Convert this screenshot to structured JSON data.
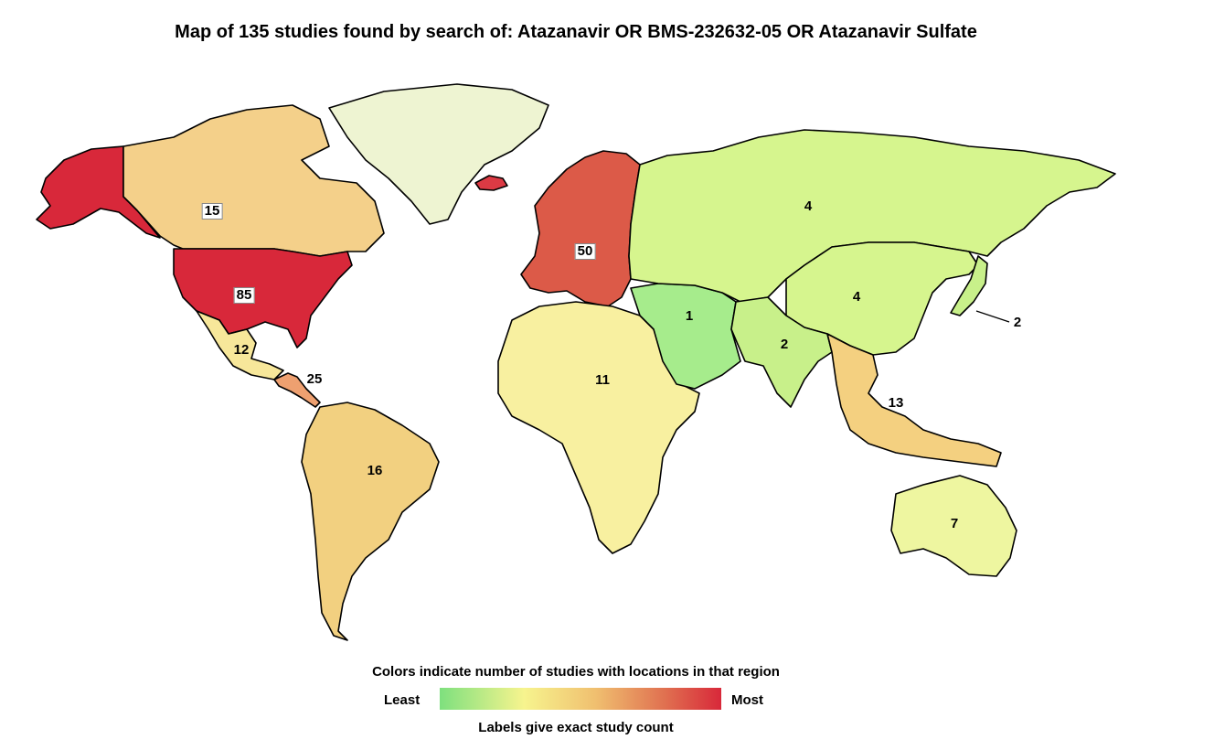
{
  "title": "Map of 135 studies found by search of:  Atazanavir OR BMS-232632-05 OR Atazanavir Sulfate",
  "legend": {
    "caption": "Colors indicate number of studies with locations in that region",
    "least": "Least",
    "most": "Most",
    "note": "Labels give exact study count"
  },
  "regions": [
    {
      "key": "alaska",
      "count": null,
      "color": "#d8283a"
    },
    {
      "key": "canada",
      "count": "15",
      "color": "#f4d08a"
    },
    {
      "key": "greenland",
      "count": null,
      "color": "#eef4d2"
    },
    {
      "key": "usa",
      "count": "85",
      "color": "#d8283a"
    },
    {
      "key": "mexico",
      "count": "12",
      "color": "#f7e79a"
    },
    {
      "key": "central-america",
      "count": "25",
      "color": "#eea070"
    },
    {
      "key": "south-america",
      "count": "16",
      "color": "#f2d080"
    },
    {
      "key": "europe",
      "count": "50",
      "color": "#dc5a48"
    },
    {
      "key": "africa",
      "count": "11",
      "color": "#f8f0a0"
    },
    {
      "key": "middle-east",
      "count": "1",
      "color": "#a6ec8c"
    },
    {
      "key": "russia",
      "count": "4",
      "color": "#d6f58e"
    },
    {
      "key": "east-asia",
      "count": "4",
      "color": "#d6f58e"
    },
    {
      "key": "south-asia",
      "count": "2",
      "color": "#c8f08a"
    },
    {
      "key": "japan",
      "count": "2",
      "color": "#c8f08a"
    },
    {
      "key": "southeast-asia",
      "count": "13",
      "color": "#f4d080"
    },
    {
      "key": "australia",
      "count": "7",
      "color": "#eef6a0"
    },
    {
      "key": "iceland",
      "count": null,
      "color": "#dc3a44"
    }
  ]
}
